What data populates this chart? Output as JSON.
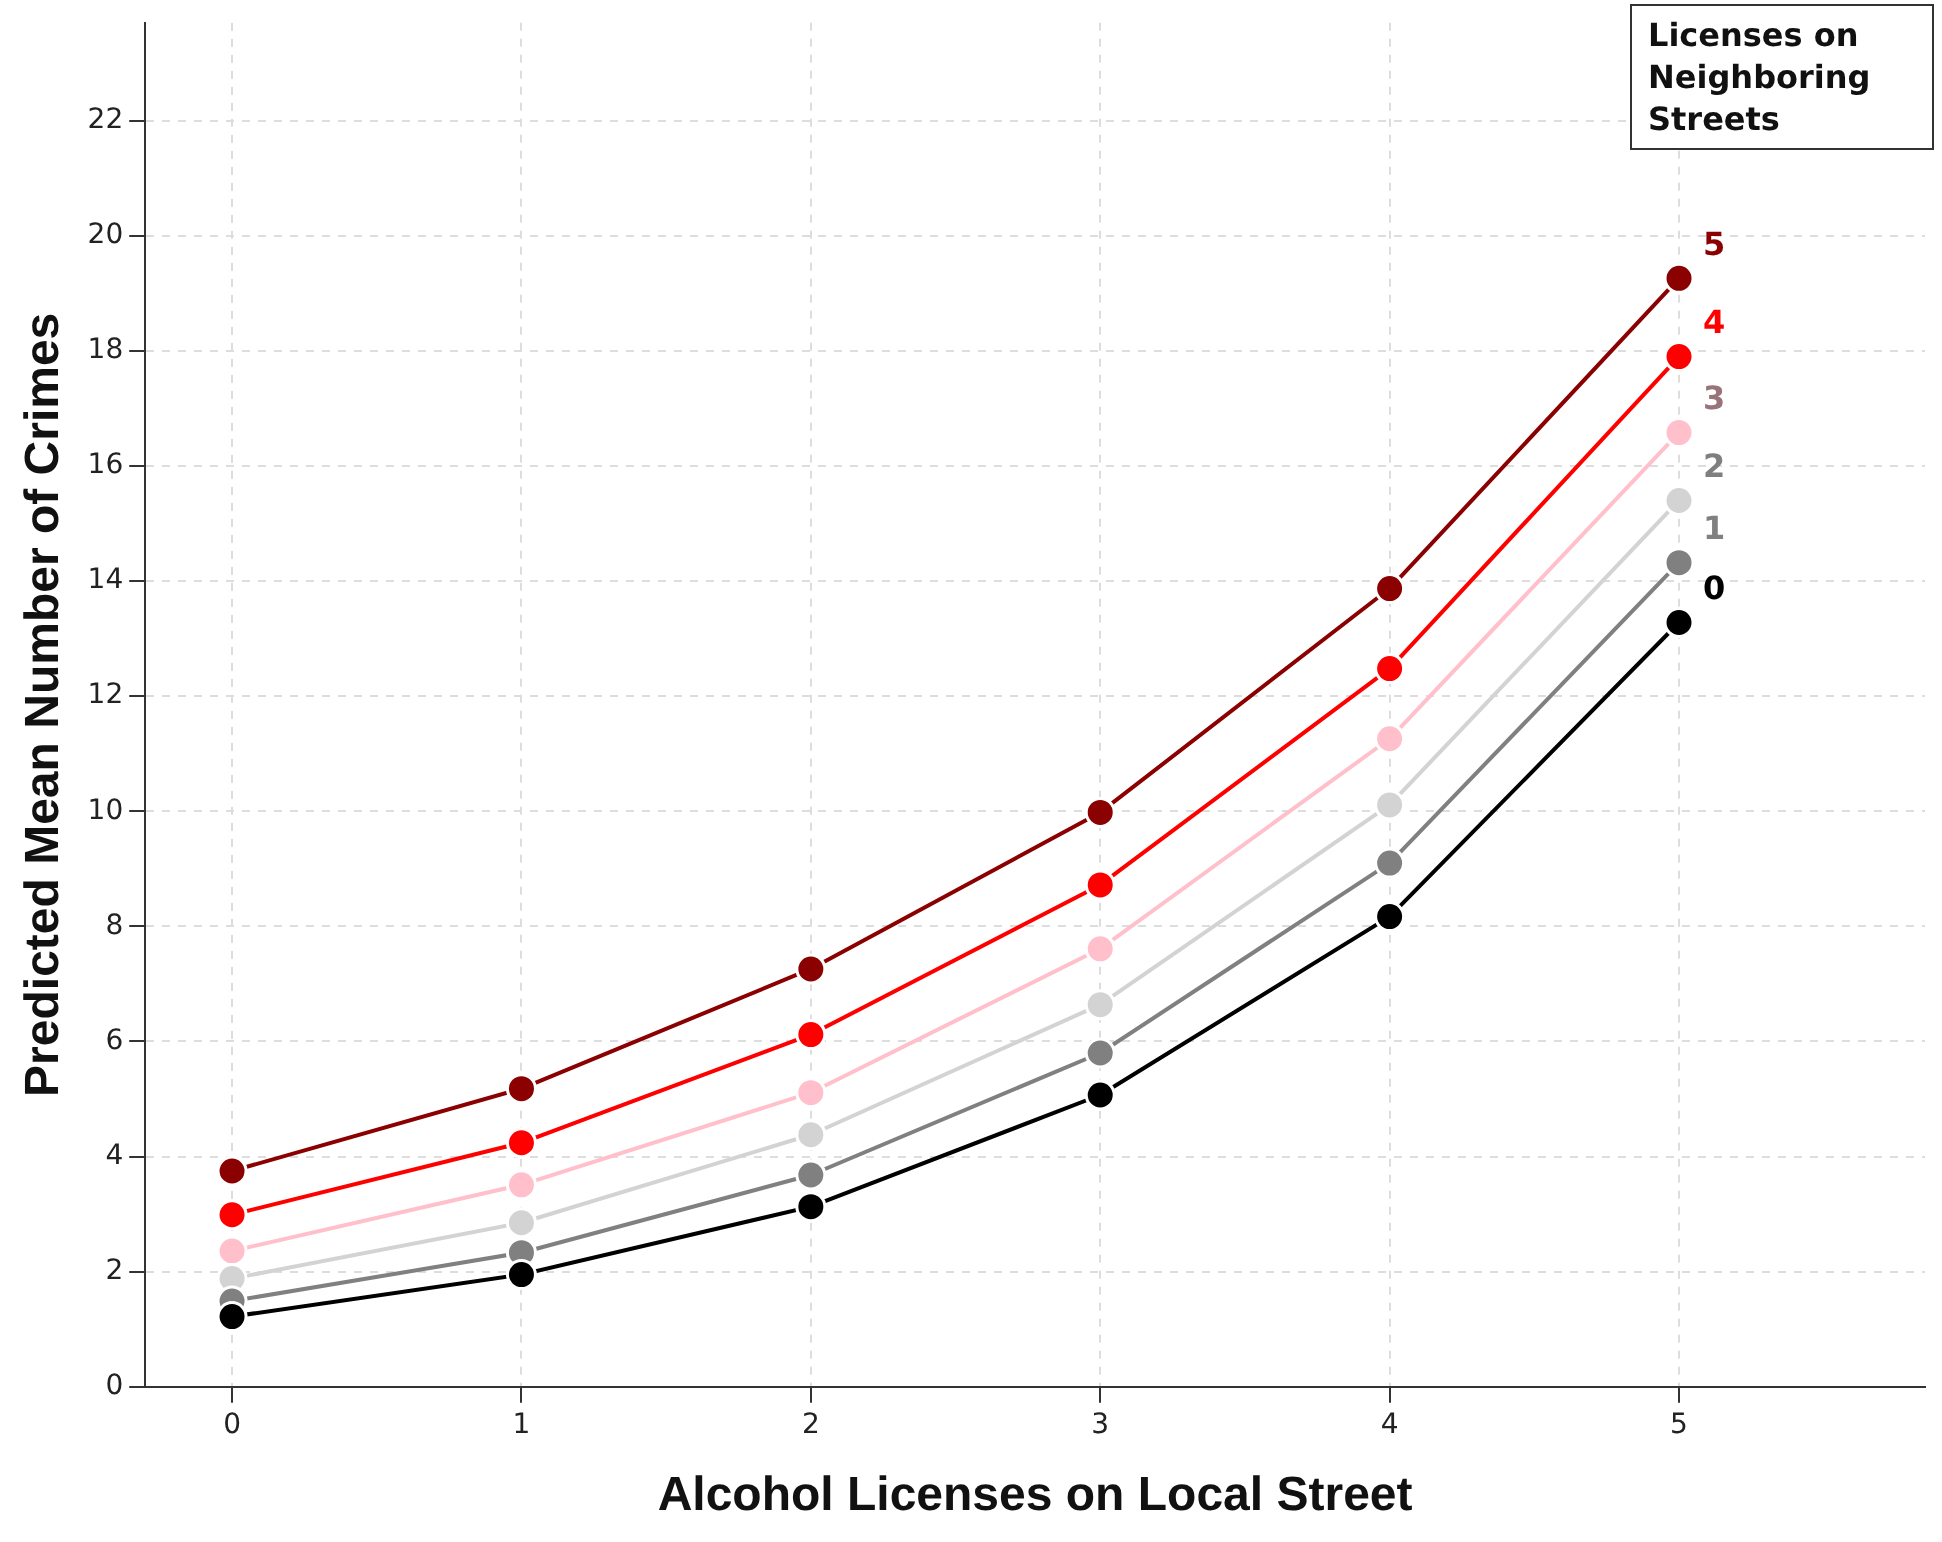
{
  "chart_data": {
    "type": "line",
    "xlabel": "Alcohol Licenses on Local Street",
    "ylabel": "Predicted Mean Number of Crimes",
    "legend_title": "Licenses on Neighboring Streets",
    "x": [
      0,
      1,
      2,
      3,
      4,
      5
    ],
    "xlim": [
      -0.3,
      5.85
    ],
    "xticks": [
      0,
      1,
      2,
      3,
      4,
      5
    ],
    "ylim": [
      0,
      23.7
    ],
    "yticks": [
      0,
      2,
      4,
      6,
      8,
      10,
      12,
      14,
      16,
      18,
      20,
      22
    ],
    "grid": true,
    "marker": "circle",
    "line_style": "solid",
    "series": [
      {
        "name": "0",
        "color": "#000000",
        "values": [
          1.22,
          1.95,
          3.13,
          5.07,
          8.17,
          13.28
        ]
      },
      {
        "name": "1",
        "color": "#808080",
        "values": [
          1.49,
          2.33,
          3.68,
          5.8,
          9.1,
          14.32
        ]
      },
      {
        "name": "2",
        "color": "#d3d3d3",
        "values": [
          1.88,
          2.85,
          4.38,
          6.64,
          10.11,
          15.4
        ]
      },
      {
        "name": "3",
        "color": "#ffc0cb",
        "values": [
          2.36,
          3.51,
          5.11,
          7.61,
          11.26,
          16.58
        ]
      },
      {
        "name": "4",
        "color": "#ff0000",
        "values": [
          2.99,
          4.24,
          6.12,
          8.72,
          12.48,
          17.9
        ]
      },
      {
        "name": "5",
        "color": "#8b0000",
        "values": [
          3.75,
          5.18,
          7.26,
          9.98,
          13.87,
          19.26
        ]
      }
    ]
  }
}
